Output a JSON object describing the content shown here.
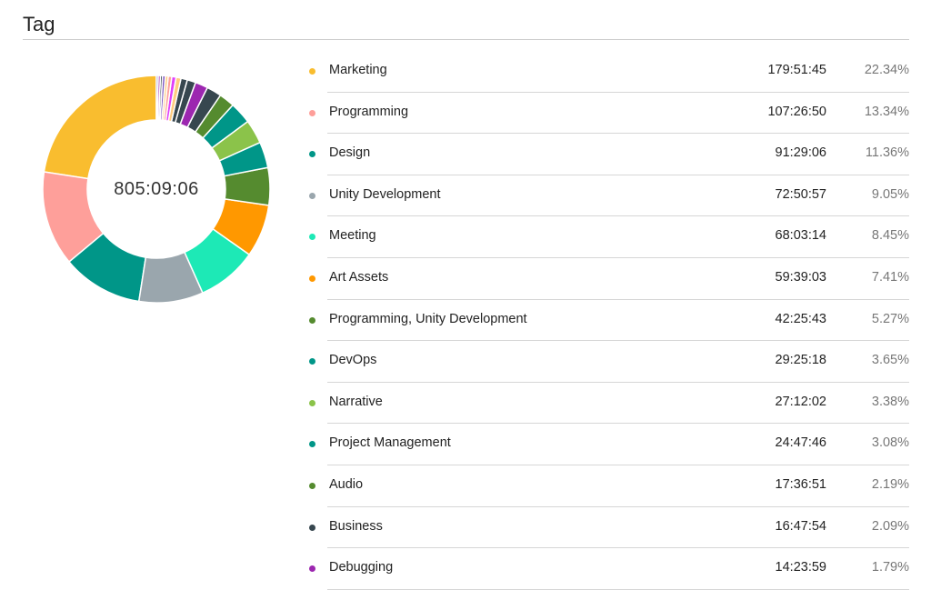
{
  "header": {
    "title": "Tag"
  },
  "chart_data": {
    "type": "pie",
    "variant": "donut",
    "center_label": "805:09:06",
    "legend_placement": "right",
    "slices": [
      {
        "name": "Marketing",
        "duration": "179:51:45",
        "percent_label": "22.34%",
        "value": 22.34,
        "color": "#f9bd2f"
      },
      {
        "name": "Programming",
        "duration": "107:26:50",
        "percent_label": "13.34%",
        "value": 13.34,
        "color": "#fe9f9a"
      },
      {
        "name": "Design",
        "duration": "91:29:06",
        "percent_label": "11.36%",
        "value": 11.36,
        "color": "#009688"
      },
      {
        "name": "Unity Development",
        "duration": "72:50:57",
        "percent_label": "9.05%",
        "value": 9.05,
        "color": "#9aa6ad"
      },
      {
        "name": "Meeting",
        "duration": "68:03:14",
        "percent_label": "8.45%",
        "value": 8.45,
        "color": "#1de9b6"
      },
      {
        "name": "Art Assets",
        "duration": "59:39:03",
        "percent_label": "7.41%",
        "value": 7.41,
        "color": "#ff9800"
      },
      {
        "name": "Programming, Unity Development",
        "duration": "42:25:43",
        "percent_label": "5.27%",
        "value": 5.27,
        "color": "#558b2f"
      },
      {
        "name": "DevOps",
        "duration": "29:25:18",
        "percent_label": "3.65%",
        "value": 3.65,
        "color": "#009688"
      },
      {
        "name": "Narrative",
        "duration": "27:12:02",
        "percent_label": "3.38%",
        "value": 3.38,
        "color": "#8bc34a"
      },
      {
        "name": "Project Management",
        "duration": "24:47:46",
        "percent_label": "3.08%",
        "value": 3.08,
        "color": "#009688"
      },
      {
        "name": "Audio",
        "duration": "17:36:51",
        "percent_label": "2.19%",
        "value": 2.19,
        "color": "#558b2f"
      },
      {
        "name": "Business",
        "duration": "16:47:54",
        "percent_label": "2.09%",
        "value": 2.09,
        "color": "#37474f"
      },
      {
        "name": "Debugging",
        "duration": "14:23:59",
        "percent_label": "1.79%",
        "value": 1.79,
        "color": "#9c27b0"
      }
    ],
    "other_slices": [
      {
        "value": 1.2,
        "color": "#37474f"
      },
      {
        "value": 0.9,
        "color": "#37474f"
      },
      {
        "value": 0.7,
        "color": "#ffcc80"
      },
      {
        "value": 0.6,
        "color": "#e040fb"
      },
      {
        "value": 0.5,
        "color": "#fe9f9a"
      },
      {
        "value": 0.4,
        "color": "#ffcc80"
      },
      {
        "value": 0.4,
        "color": "#7e57c2"
      },
      {
        "value": 0.3,
        "color": "#37474f"
      },
      {
        "value": 0.3,
        "color": "#9c27b0"
      },
      {
        "value": 0.25,
        "color": "#5c6bc0"
      }
    ]
  }
}
